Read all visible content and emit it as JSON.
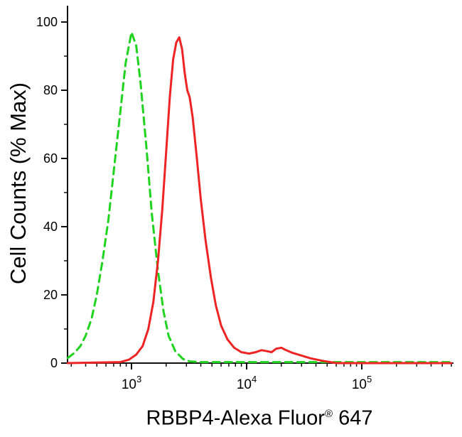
{
  "figure": {
    "background": "#ffffff",
    "axis_color": "#111111",
    "text_color": "#000000"
  },
  "chart_data": {
    "type": "line",
    "chart_kind": "flow-cytometry-overlay-histogram",
    "title": "",
    "xlabel": "RBBP4-Alexa Fluor® 647",
    "xlabel_parts": {
      "main": "RBBP4-Alexa Fluor",
      "sup": "®",
      "suffix": " 647"
    },
    "ylabel": "Cell Counts (% Max)",
    "x_scale": "log10",
    "x_range": [
      280,
      600000
    ],
    "ylim": [
      0,
      100
    ],
    "grid": false,
    "legend": "none",
    "x_major_ticks": [
      {
        "value": 1000,
        "base": "10",
        "exp": "3"
      },
      {
        "value": 10000,
        "base": "10",
        "exp": "4"
      },
      {
        "value": 100000,
        "base": "10",
        "exp": "5"
      }
    ],
    "y_major_ticks": [
      0,
      20,
      40,
      60,
      80,
      100
    ],
    "y_minor_ticks": [
      10,
      30,
      50,
      70,
      90
    ],
    "series": [
      {
        "name": "control-green-dashed",
        "style": "dashed",
        "color": "#1fd41f",
        "width": 3,
        "points": [
          [
            280,
            1.5
          ],
          [
            320,
            3
          ],
          [
            360,
            5
          ],
          [
            400,
            8
          ],
          [
            450,
            13
          ],
          [
            500,
            20
          ],
          [
            560,
            30
          ],
          [
            630,
            42
          ],
          [
            700,
            56
          ],
          [
            790,
            72
          ],
          [
            890,
            88
          ],
          [
            1000,
            97
          ],
          [
            1100,
            93
          ],
          [
            1200,
            82
          ],
          [
            1350,
            63
          ],
          [
            1500,
            44
          ],
          [
            1700,
            27
          ],
          [
            1900,
            15
          ],
          [
            2100,
            8
          ],
          [
            2400,
            3.5
          ],
          [
            2800,
            1.2
          ],
          [
            3200,
            0.5
          ],
          [
            4000,
            0.3
          ],
          [
            10000,
            0.3
          ],
          [
            100000,
            0.3
          ],
          [
            600000,
            0.3
          ]
        ]
      },
      {
        "name": "rbbp4-red-solid",
        "style": "solid",
        "color": "#ee2424",
        "width": 3,
        "points": [
          [
            280,
            0
          ],
          [
            800,
            0.3
          ],
          [
            950,
            1
          ],
          [
            1100,
            2.5
          ],
          [
            1250,
            5
          ],
          [
            1400,
            10
          ],
          [
            1550,
            18
          ],
          [
            1700,
            30
          ],
          [
            1850,
            45
          ],
          [
            2000,
            62
          ],
          [
            2150,
            78
          ],
          [
            2300,
            89
          ],
          [
            2450,
            94
          ],
          [
            2600,
            95.5
          ],
          [
            2750,
            92
          ],
          [
            2900,
            85
          ],
          [
            3050,
            80
          ],
          [
            3200,
            78
          ],
          [
            3400,
            72
          ],
          [
            3700,
            60
          ],
          [
            4000,
            48
          ],
          [
            4400,
            36
          ],
          [
            4900,
            25
          ],
          [
            5400,
            17
          ],
          [
            6000,
            11
          ],
          [
            6800,
            7
          ],
          [
            7800,
            4.5
          ],
          [
            9000,
            3.2
          ],
          [
            10500,
            2.8
          ],
          [
            12000,
            3.2
          ],
          [
            13500,
            3.8
          ],
          [
            15000,
            3.5
          ],
          [
            16500,
            3.2
          ],
          [
            18000,
            4.2
          ],
          [
            20000,
            4.5
          ],
          [
            22000,
            3.8
          ],
          [
            25000,
            3
          ],
          [
            30000,
            2.2
          ],
          [
            36000,
            1.4
          ],
          [
            45000,
            0.7
          ],
          [
            55000,
            0.2
          ],
          [
            60000,
            0
          ],
          [
            600000,
            0
          ]
        ]
      }
    ]
  }
}
